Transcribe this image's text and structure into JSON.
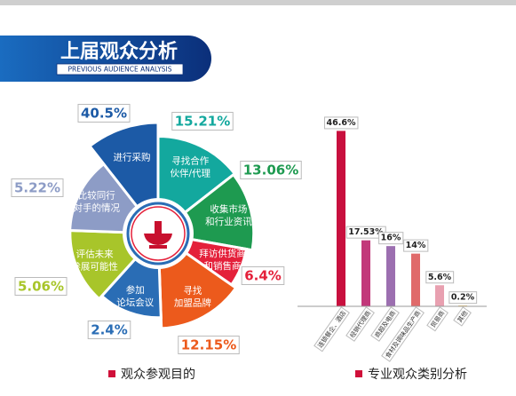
{
  "header": {
    "title": "上届观众分析",
    "subtitle": "PREVIOUS AUDIENCE ANALYSIS"
  },
  "chart_data": [
    {
      "type": "rose",
      "title": "观众参观目的",
      "categories": [
        [
          "寻找合作",
          "伙伴/代理"
        ],
        [
          "收集市场",
          "和行业资讯"
        ],
        [
          "拜访供货商",
          "和销售商"
        ],
        [
          "寻找",
          "加盟品牌"
        ],
        [
          "参加",
          "论坛会议"
        ],
        [
          "评估未来",
          "参展可能性"
        ],
        [
          "比较同行",
          "对手的情况"
        ],
        [
          "进行采购"
        ]
      ],
      "values": [
        15.21,
        13.06,
        6.4,
        12.15,
        2.4,
        5.06,
        5.22,
        40.5
      ],
      "value_labels": [
        "15.21%",
        "13.06%",
        "6.4%",
        "12.15%",
        "2.4%",
        "5.06%",
        "5.22%",
        "40.5%"
      ],
      "colors": [
        "#13a89e",
        "#1e9a50",
        "#e4203a",
        "#ec5a1c",
        "#2a6db5",
        "#a8c52a",
        "#8d9cc6",
        "#1c5aa6"
      ]
    },
    {
      "type": "bar",
      "title": "专业观众类别分析",
      "categories": [
        "连锁餐企、酒店",
        "经销代理商",
        "商超及电商",
        "食材及调味品生产商",
        "贸易商",
        "其他"
      ],
      "values": [
        46.6,
        17.53,
        16,
        14,
        5.6,
        0.2
      ],
      "value_labels": [
        "46.6%",
        "17.53%",
        "16%",
        "14%",
        "5.6%",
        "0.2%"
      ],
      "colors": [
        "#c8103e",
        "#c2387a",
        "#9c6fb0",
        "#e06a6a",
        "#e8a0b0",
        "#e8b84a"
      ],
      "ylim": [
        0,
        50
      ]
    }
  ]
}
